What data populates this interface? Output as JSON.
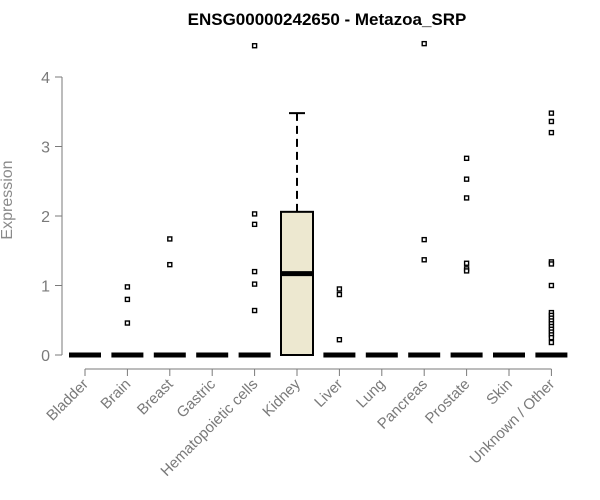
{
  "chart_data": {
    "type": "boxplot",
    "title": "ENSG00000242650 - Metazoa_SRP",
    "ylabel": "Expression",
    "xlabel": "",
    "ylim": [
      0,
      4.5
    ],
    "yticks": [
      0,
      1,
      2,
      3,
      4
    ],
    "grid": false,
    "legend": "none",
    "box_fill": "#ede8d0",
    "categories": [
      "Bladder",
      "Brain",
      "Breast",
      "Gastric",
      "Hematopoietic cells",
      "Kidney",
      "Liver",
      "Lung",
      "Pancreas",
      "Prostate",
      "Skin",
      "Unknown / Other"
    ],
    "boxes": [
      {
        "name": "Bladder",
        "q1": 0,
        "median": 0,
        "q3": 0,
        "whisker_low": 0,
        "whisker_high": 0,
        "outliers": []
      },
      {
        "name": "Brain",
        "q1": 0,
        "median": 0,
        "q3": 0,
        "whisker_low": 0,
        "whisker_high": 0,
        "outliers": [
          0.98,
          0.8,
          0.46
        ]
      },
      {
        "name": "Breast",
        "q1": 0,
        "median": 0,
        "q3": 0,
        "whisker_low": 0,
        "whisker_high": 0,
        "outliers": [
          1.67,
          1.3
        ]
      },
      {
        "name": "Gastric",
        "q1": 0,
        "median": 0,
        "q3": 0,
        "whisker_low": 0,
        "whisker_high": 0,
        "outliers": []
      },
      {
        "name": "Hematopoietic cells",
        "q1": 0,
        "median": 0,
        "q3": 0,
        "whisker_low": 0,
        "whisker_high": 0,
        "outliers": [
          4.45,
          2.03,
          1.88,
          1.2,
          1.02,
          0.64
        ]
      },
      {
        "name": "Kidney",
        "q1": 0,
        "median": 1.17,
        "q3": 2.06,
        "whisker_low": 0,
        "whisker_high": 3.48,
        "outliers": []
      },
      {
        "name": "Liver",
        "q1": 0,
        "median": 0,
        "q3": 0,
        "whisker_low": 0,
        "whisker_high": 0,
        "outliers": [
          0.95,
          0.87,
          0.22
        ]
      },
      {
        "name": "Lung",
        "q1": 0,
        "median": 0,
        "q3": 0,
        "whisker_low": 0,
        "whisker_high": 0,
        "outliers": []
      },
      {
        "name": "Pancreas",
        "q1": 0,
        "median": 0,
        "q3": 0,
        "whisker_low": 0,
        "whisker_high": 0,
        "outliers": [
          4.48,
          1.66,
          1.37
        ]
      },
      {
        "name": "Prostate",
        "q1": 0,
        "median": 0,
        "q3": 0,
        "whisker_low": 0,
        "whisker_high": 0,
        "outliers": [
          2.83,
          2.53,
          2.26,
          1.32,
          1.24,
          1.21
        ]
      },
      {
        "name": "Skin",
        "q1": 0,
        "median": 0,
        "q3": 0,
        "whisker_low": 0,
        "whisker_high": 0,
        "outliers": []
      },
      {
        "name": "Unknown / Other",
        "q1": 0,
        "median": 0,
        "q3": 0,
        "whisker_low": 0,
        "whisker_high": 0,
        "outliers": [
          3.48,
          3.36,
          3.2,
          1.34,
          1.31,
          1.0,
          0.61,
          0.57,
          0.53,
          0.49,
          0.45,
          0.41,
          0.37,
          0.33,
          0.29,
          0.25,
          0.18
        ]
      }
    ]
  }
}
